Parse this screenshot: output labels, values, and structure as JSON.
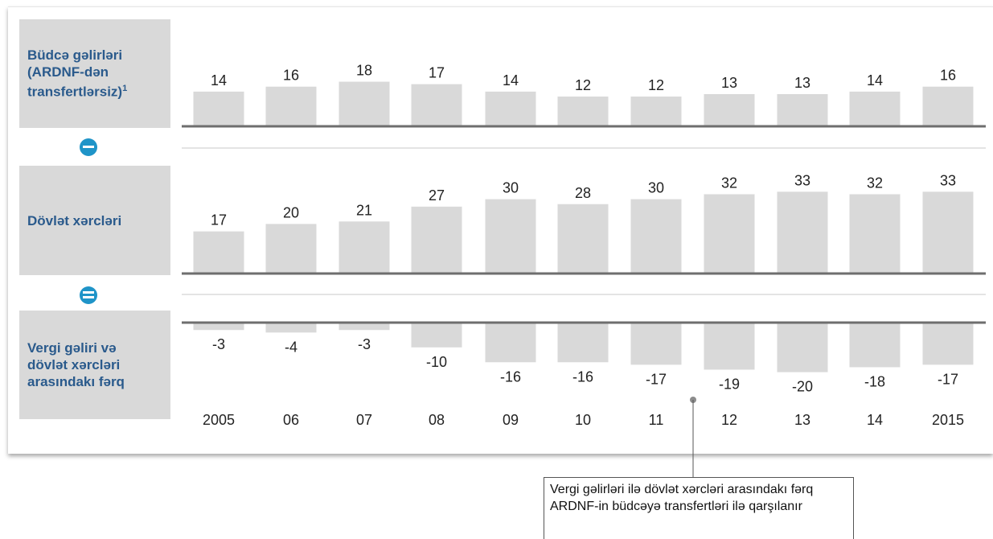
{
  "labels": {
    "revenue_line1": "Büdcə gəlirləri",
    "revenue_line2": "(ARDNF-dən",
    "revenue_line3": "transfertlərsiz)",
    "revenue_sup": "1",
    "expenditure": "Dövlət xərcləri",
    "gap_line1": "Vergi gəliri və",
    "gap_line2": "dövlət xərcləri",
    "gap_line3": "arasındakı fərq"
  },
  "annotation": "Vergi gəlirləri ilə dövlət xərcləri arasındakı fərq ARDNF-in büdcəyə transfertləri ilə qarşılanır",
  "icons": {
    "minus": "minus-circle-icon",
    "equals": "equals-circle-icon"
  },
  "colors": {
    "bar": "#d9d9d9",
    "label_text": "#2a5a8c",
    "icon": "#1f94c8",
    "axis": "#6e6e6e"
  },
  "chart_data": [
    {
      "type": "bar",
      "categories": [
        "2005",
        "06",
        "07",
        "08",
        "09",
        "10",
        "11",
        "12",
        "13",
        "14",
        "2015"
      ],
      "values": [
        14,
        16,
        18,
        17,
        14,
        12,
        12,
        13,
        13,
        14,
        16
      ],
      "value_labels": [
        "14",
        "16",
        "18",
        "17",
        "14",
        "12",
        "12",
        "13",
        "13",
        "14",
        "16"
      ],
      "title": ""
    },
    {
      "type": "bar",
      "categories": [
        "2005",
        "06",
        "07",
        "08",
        "09",
        "10",
        "11",
        "12",
        "13",
        "14",
        "2015"
      ],
      "values": [
        17,
        20,
        21,
        27,
        30,
        28,
        30,
        32,
        33,
        32,
        33
      ],
      "value_labels": [
        "17",
        "20",
        "21",
        "27",
        "30",
        "28",
        "30",
        "32",
        "33",
        "32",
        "33"
      ],
      "title": ""
    },
    {
      "type": "bar",
      "categories": [
        "2005",
        "06",
        "07",
        "08",
        "09",
        "10",
        "11",
        "12",
        "13",
        "14",
        "2015"
      ],
      "values": [
        -3,
        -4,
        -3,
        -10,
        -16,
        -16,
        -17,
        -19,
        -20,
        -18,
        -17
      ],
      "value_labels": [
        "-3",
        "-4",
        "-3",
        "-10",
        "-16",
        "-16",
        "-17",
        "-19",
        "-20",
        "-18",
        "-17"
      ],
      "title": ""
    }
  ]
}
